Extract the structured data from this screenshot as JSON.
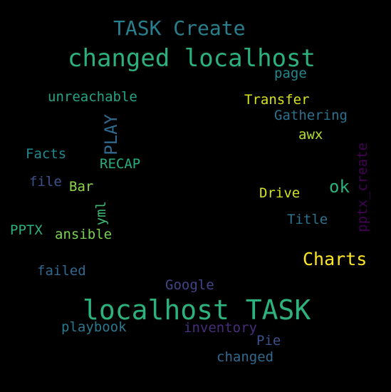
{
  "cloud": {
    "words": {
      "w01": {
        "text": "TASK Create",
        "color": "#2a7f8e"
      },
      "w02": {
        "text": "changed localhost",
        "color": "#2cb17e"
      },
      "w03": {
        "text": "page",
        "color": "#24878e"
      },
      "w04": {
        "text": "unreachable",
        "color": "#21a585"
      },
      "w05": {
        "text": "Transfer",
        "color": "#d8e219"
      },
      "w06": {
        "text": "Gathering",
        "color": "#2c718e"
      },
      "w07": {
        "text": "PLAY",
        "color": "#31688e"
      },
      "w08": {
        "text": "awx",
        "color": "#b5de2b"
      },
      "w09": {
        "text": "Facts",
        "color": "#23898e"
      },
      "w10": {
        "text": "RECAP",
        "color": "#27ad81"
      },
      "w11": {
        "text": "pptx_create",
        "color": "#440154"
      },
      "w12": {
        "text": "file",
        "color": "#3b528b"
      },
      "w13": {
        "text": "Bar",
        "color": "#8fd744"
      },
      "w14": {
        "text": "ok",
        "color": "#2db27d"
      },
      "w15": {
        "text": "Drive",
        "color": "#d2e21b"
      },
      "w16": {
        "text": "yml",
        "color": "#3dbc74"
      },
      "w17": {
        "text": "PPTX",
        "color": "#2ab07f"
      },
      "w18": {
        "text": "ansible",
        "color": "#7ad151"
      },
      "w19": {
        "text": "Title",
        "color": "#2c728e"
      },
      "w20": {
        "text": "Charts",
        "color": "#fde725"
      },
      "w21": {
        "text": "failed",
        "color": "#31688e"
      },
      "w22": {
        "text": "Google",
        "color": "#414487"
      },
      "w23": {
        "text": "localhost TASK",
        "color": "#2db27d"
      },
      "w24": {
        "text": "playbook",
        "color": "#2a788e"
      },
      "w25": {
        "text": "inventory",
        "color": "#472d7b"
      },
      "w26": {
        "text": "Pie",
        "color": "#3b528b"
      },
      "w27": {
        "text": "changed",
        "color": "#31688e"
      }
    }
  }
}
